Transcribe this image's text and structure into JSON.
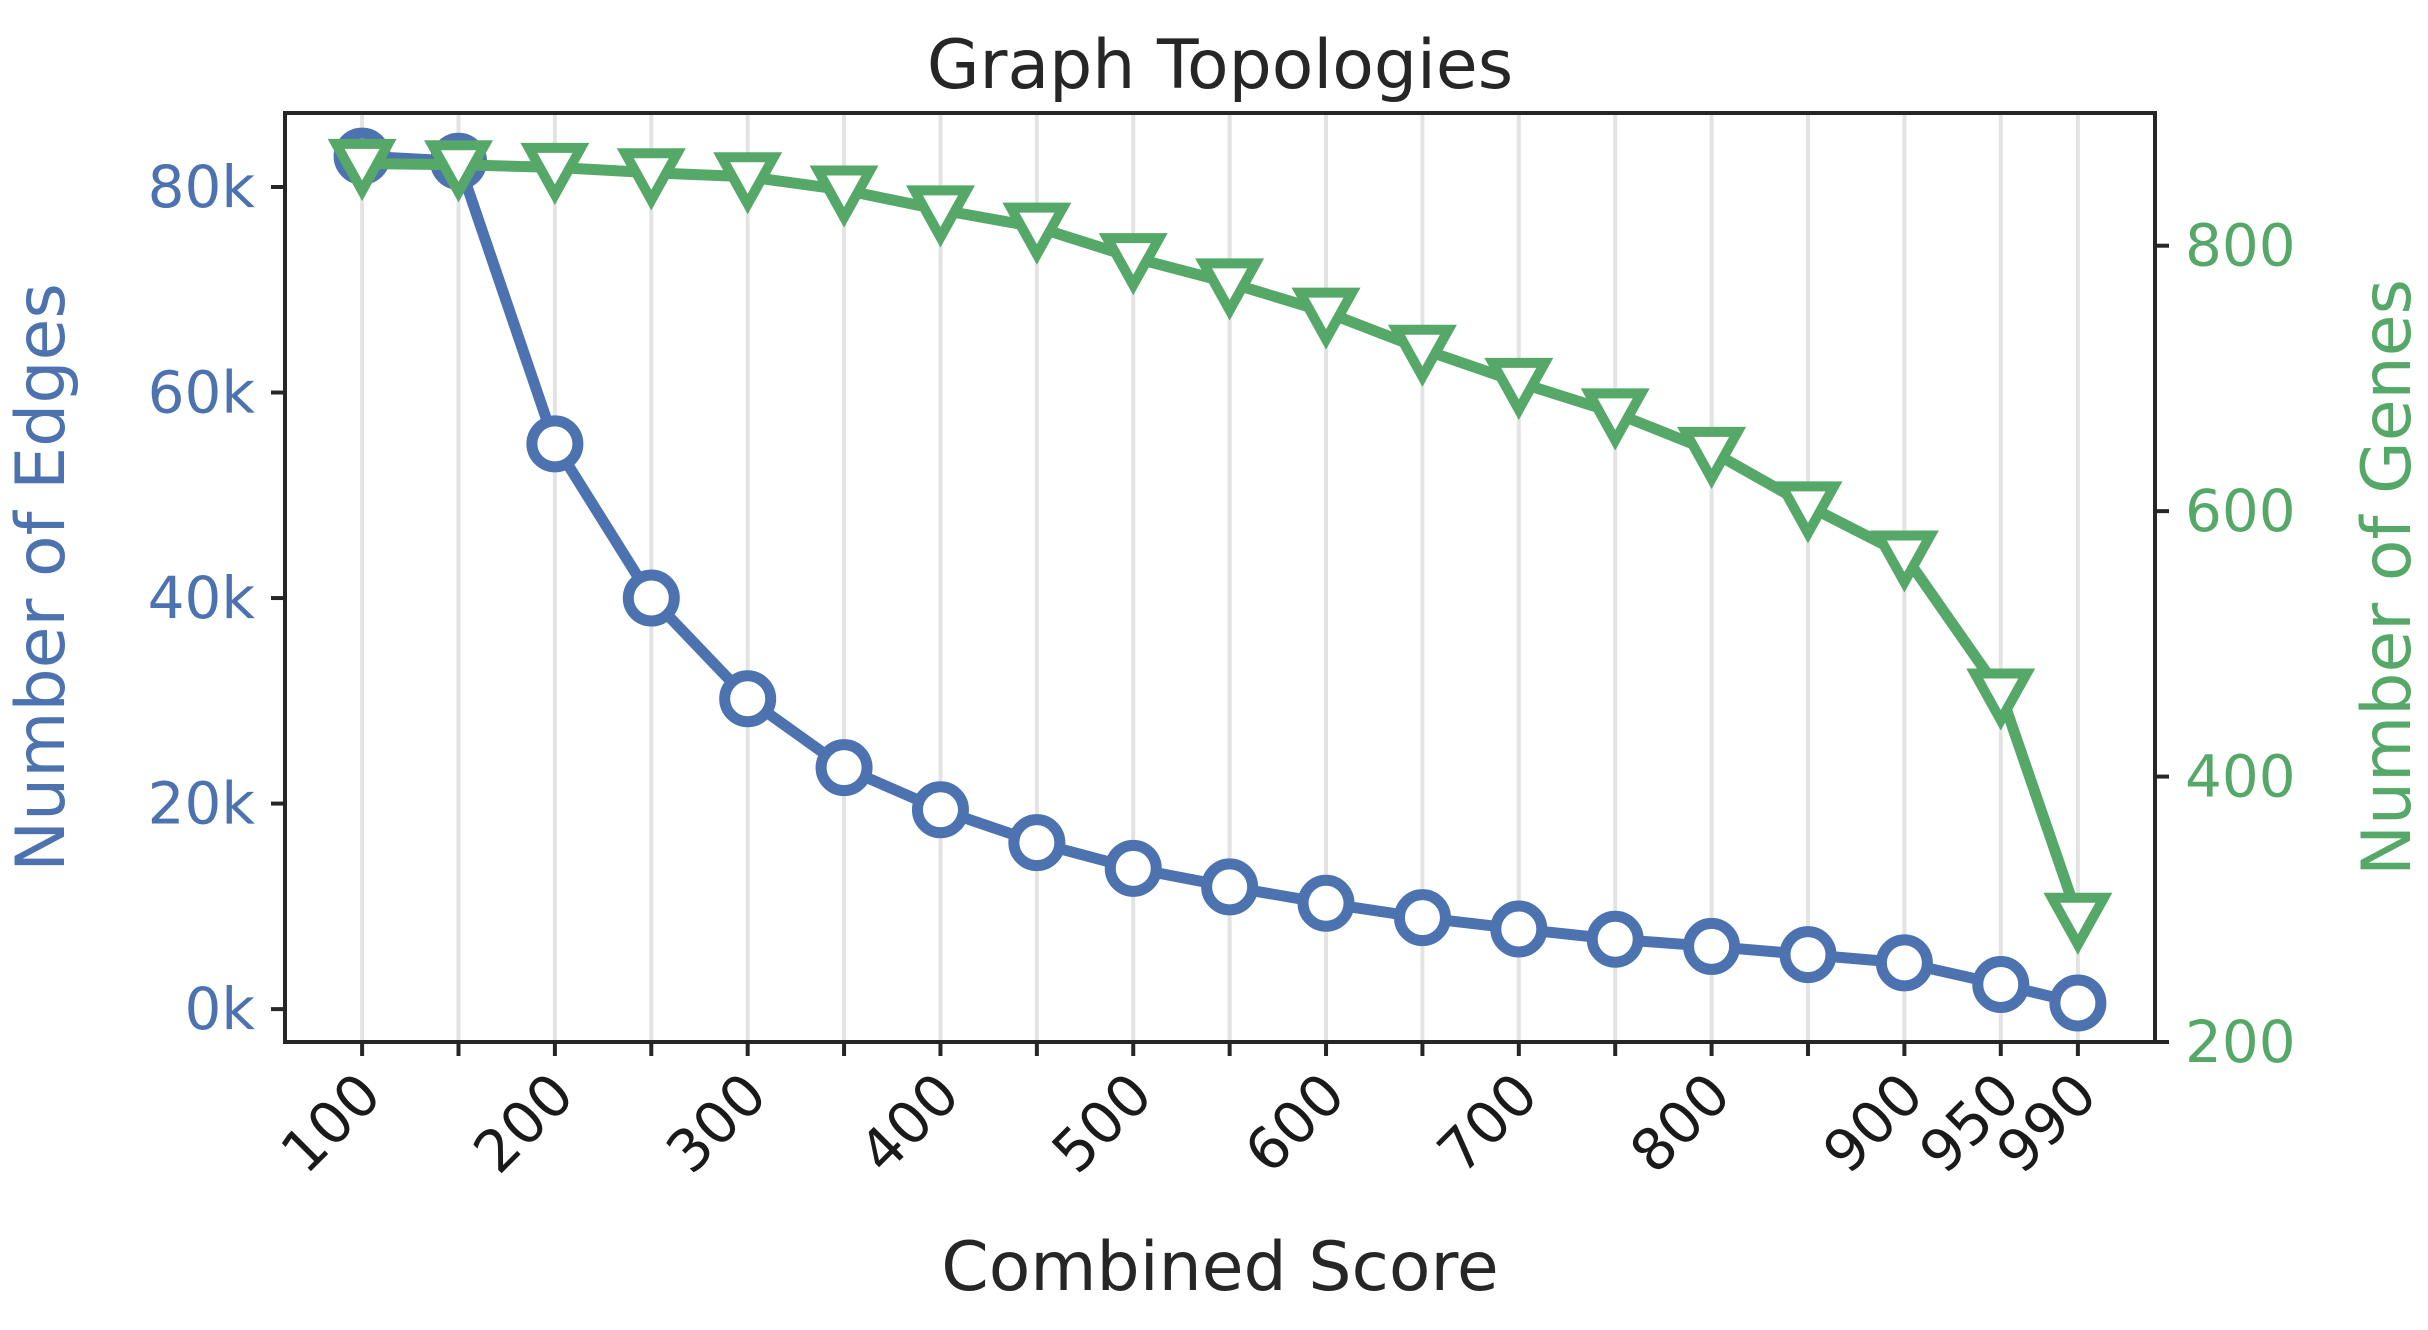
{
  "chart_data": {
    "type": "line",
    "title": "Graph Topologies",
    "xlabel": "Combined Score",
    "ylabel_left": "Number of Edges",
    "ylabel_right": "Number of Genes",
    "x": [
      100,
      150,
      200,
      250,
      300,
      350,
      400,
      450,
      500,
      550,
      600,
      650,
      700,
      750,
      800,
      850,
      900,
      950,
      990
    ],
    "x_tick_labels": [
      "100",
      "200",
      "300",
      "400",
      "500",
      "600",
      "700",
      "800",
      "900",
      "950",
      "990"
    ],
    "x_tick_values": [
      100,
      200,
      300,
      400,
      500,
      600,
      700,
      800,
      900,
      950,
      990
    ],
    "xlim": [
      60,
      1030
    ],
    "grid": "vertical",
    "left_axis": {
      "ylim": [
        -3200,
        87200
      ],
      "ticks": [
        0,
        20000,
        40000,
        60000,
        80000
      ],
      "tick_labels": [
        "0k",
        "20k",
        "40k",
        "60k",
        "80k"
      ],
      "color": "#4c72b0"
    },
    "right_axis": {
      "ylim": [
        200,
        900
      ],
      "ticks": [
        200,
        400,
        600,
        800
      ],
      "tick_labels": [
        "200",
        "400",
        "600",
        "800"
      ],
      "color": "#55a868"
    },
    "series": [
      {
        "axis": "left",
        "marker": "circle",
        "color": "#4c72b0",
        "values": [
          83000,
          82500,
          55000,
          40000,
          30200,
          23500,
          19400,
          16200,
          13700,
          11900,
          10300,
          8900,
          7800,
          6800,
          6100,
          5300,
          4500,
          2400,
          600
        ]
      },
      {
        "axis": "right",
        "marker": "triangle-down",
        "color": "#55a868",
        "values": [
          862,
          861,
          859,
          855,
          852,
          842,
          827,
          814,
          791,
          772,
          750,
          722,
          697,
          674,
          645,
          604,
          567,
          463,
          294
        ]
      }
    ]
  }
}
